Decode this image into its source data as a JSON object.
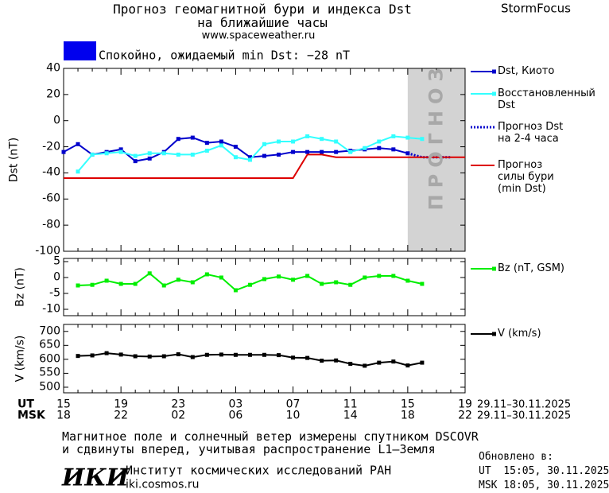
{
  "header": {
    "title": "Прогноз геомагнитной бури и индекса Dst\nна ближайшие часы",
    "url": "www.spaceweather.ru",
    "brand": "StormFocus"
  },
  "status": {
    "color": "#0000ee",
    "text": "Спокойно, ожидаемый min Dst: −28 nT"
  },
  "chart_data": [
    {
      "type": "line",
      "ylabel": "Dst (nT)",
      "ylim": [
        -100,
        40
      ],
      "yticks": [
        40,
        20,
        0,
        -20,
        -40,
        -60,
        -80,
        -100
      ],
      "forecast_region": {
        "label": "ПРОГНОЗ",
        "from_index": 24,
        "color": "#d3d3d3"
      },
      "series": [
        {
          "name": "Dst, Киото",
          "color": "#0000cc",
          "marker": "square",
          "values": [
            -24,
            -18,
            -26,
            -24,
            -22,
            -31,
            -29,
            -24,
            -14,
            -13,
            -17,
            -16,
            -20,
            -28,
            -27,
            -26,
            -24,
            -24,
            -24,
            -24,
            -23,
            -22,
            -21,
            -22,
            -25,
            null,
            null,
            null,
            null
          ]
        },
        {
          "name": "Восстановленный\nDst",
          "color": "#33ffff",
          "marker": "square",
          "values": [
            null,
            -39,
            -26,
            -25,
            -24,
            -27,
            -25,
            -25,
            -26,
            -26,
            -23,
            -19,
            -28,
            -30,
            -18,
            -16,
            -16,
            -12,
            -14,
            -16,
            -24,
            -21,
            -16,
            -12,
            -13,
            -14,
            null,
            null,
            null
          ]
        },
        {
          "name": "Прогноз Dst\nна 2-4 часа",
          "color": "#0000cc",
          "dash": "dotted",
          "values": [
            null,
            null,
            null,
            null,
            null,
            null,
            null,
            null,
            null,
            null,
            null,
            null,
            null,
            null,
            null,
            null,
            null,
            null,
            null,
            null,
            null,
            null,
            null,
            null,
            -25,
            -28,
            -28,
            -28,
            null
          ]
        },
        {
          "name": "Прогноз\nсилы бури\n(min Dst)",
          "color": "#dd0000",
          "values": [
            -44,
            -44,
            -44,
            -44,
            -44,
            -44,
            -44,
            -44,
            -44,
            -44,
            -44,
            -44,
            -44,
            -44,
            -44,
            -44,
            -44,
            -26,
            -26,
            -28,
            -28,
            -28,
            -28,
            -28,
            -28,
            -28,
            -28,
            -28,
            -28
          ]
        }
      ]
    },
    {
      "type": "line",
      "ylabel": "Bz (nT)",
      "ylim": [
        -12,
        6
      ],
      "yticks": [
        5,
        0,
        -5,
        -10
      ],
      "series": [
        {
          "name": "Bz (nT, GSM)",
          "color": "#00ee00",
          "marker": "square",
          "values": [
            null,
            -2.5,
            -2.3,
            -1,
            -2,
            -2,
            1.3,
            -2.5,
            -0.7,
            -1.5,
            1,
            0,
            -4,
            -2.3,
            -0.5,
            0.3,
            -0.7,
            0.5,
            -2,
            -1.5,
            -2.3,
            0,
            0.5,
            0.5,
            -1,
            -2,
            null,
            null,
            null
          ]
        }
      ]
    },
    {
      "type": "line",
      "ylabel": "V (km/s)",
      "ylim": [
        480,
        725
      ],
      "yticks": [
        700,
        650,
        600,
        550,
        500
      ],
      "categories": [
        "15",
        null,
        null,
        null,
        "19",
        null,
        null,
        null,
        "23",
        null,
        null,
        null,
        "03",
        null,
        null,
        null,
        "07",
        null,
        null,
        null,
        "11",
        null,
        null,
        null,
        "15",
        null,
        null,
        null,
        "19"
      ],
      "categories_msk": [
        "18",
        null,
        null,
        null,
        "22",
        null,
        null,
        null,
        "02",
        null,
        null,
        null,
        "06",
        null,
        null,
        null,
        "10",
        null,
        null,
        null,
        "14",
        null,
        null,
        null,
        "18",
        null,
        null,
        null,
        "22"
      ],
      "row_labels": [
        "UT",
        "MSK"
      ],
      "date_labels": [
        "29.11–30.11.2025",
        "29.11–30.11.2025"
      ],
      "series": [
        {
          "name": "V (km/s)",
          "color": "#000000",
          "marker": "square",
          "values": [
            null,
            612,
            614,
            622,
            617,
            611,
            610,
            611,
            618,
            608,
            616,
            617,
            616,
            616,
            616,
            615,
            606,
            605,
            595,
            596,
            584,
            577,
            588,
            592,
            578,
            588,
            null,
            null,
            null
          ]
        }
      ]
    }
  ],
  "footer": {
    "note": "Магнитное поле и солнечный ветер измерены спутником DSCOVR\nи сдвинуты вперед, учитывая распространение L1–Земля",
    "logo": "ИКИ",
    "institute": "Институт космических исследований РАН",
    "site": "iki.cosmos.ru",
    "updated": "Обновлено в:\nUT  15:05, 30.11.2025\nMSK 18:05, 30.11.2025"
  }
}
